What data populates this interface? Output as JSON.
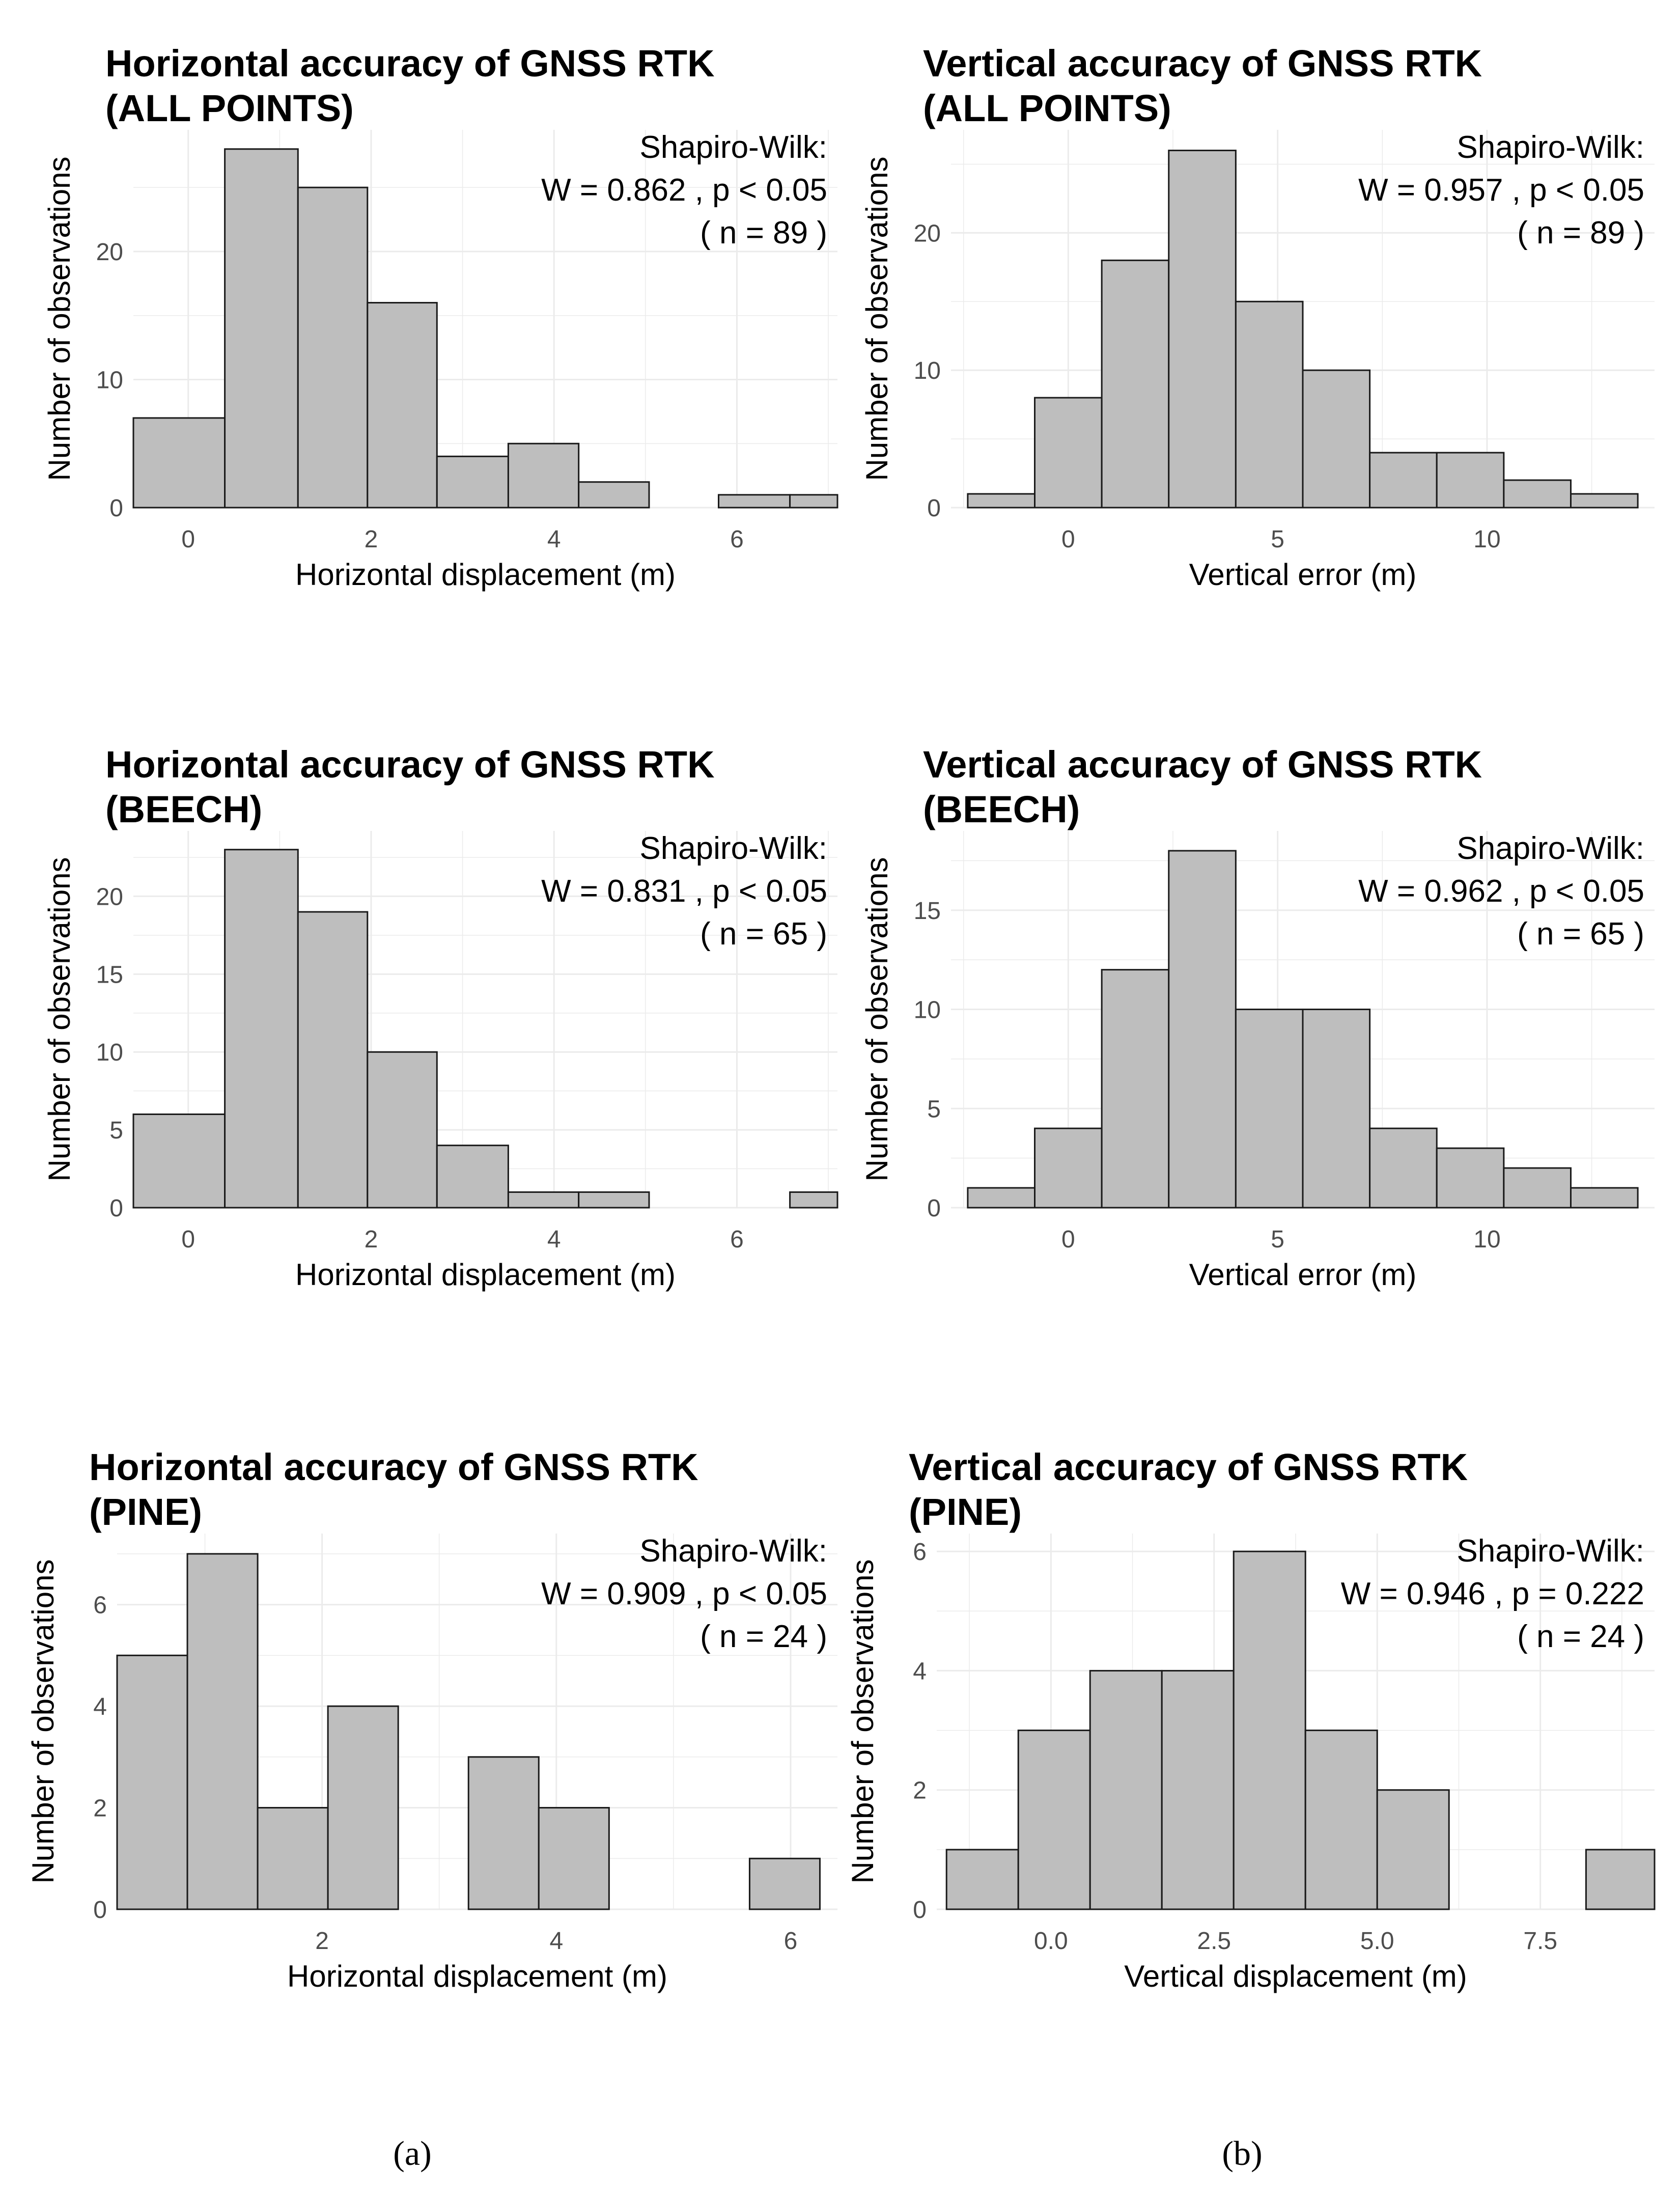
{
  "chart_data": [
    {
      "id": "h-all",
      "type": "histogram",
      "title_lines": [
        "Horizontal accuracy of GNSS RTK",
        " (ALL POINTS)"
      ],
      "stats_lines": [
        "Shapiro-Wilk:",
        "W = 0.862 , p < 0.05",
        "( n = 89 )"
      ],
      "xlabel": "Horizontal displacement (m)",
      "ylabel": "Number of observations",
      "xlim": [
        -0.6,
        7.1
      ],
      "ylim": [
        0,
        29.5
      ],
      "xticks": [
        0,
        2,
        4,
        6
      ],
      "xtick_labels": [
        "0",
        "2",
        "4",
        "6"
      ],
      "yticks": [
        0,
        10,
        20
      ],
      "ytick_labels": [
        "0",
        "10",
        "20"
      ],
      "bins": [
        {
          "x0": -0.6,
          "x1": 0.4,
          "count": 7
        },
        {
          "x0": 0.4,
          "x1": 1.2,
          "count": 28
        },
        {
          "x0": 1.2,
          "x1": 1.96,
          "count": 25
        },
        {
          "x0": 1.96,
          "x1": 2.72,
          "count": 16
        },
        {
          "x0": 2.72,
          "x1": 3.5,
          "count": 4
        },
        {
          "x0": 3.5,
          "x1": 4.27,
          "count": 5
        },
        {
          "x0": 4.27,
          "x1": 5.04,
          "count": 2
        },
        {
          "x0": 5.04,
          "x1": 5.8,
          "count": 0
        },
        {
          "x0": 5.8,
          "x1": 6.58,
          "count": 1
        },
        {
          "x0": 6.58,
          "x1": 7.35,
          "count": 1
        }
      ]
    },
    {
      "id": "v-all",
      "type": "histogram",
      "title_lines": [
        "Vertical accuracy of GNSS RTK",
        " (ALL POINTS)"
      ],
      "stats_lines": [
        "Shapiro-Wilk:",
        "W = 0.957 , p < 0.05",
        "( n = 89 )"
      ],
      "xlabel": "Vertical error (m)",
      "ylabel": "Number of observations",
      "xlim": [
        -2.8,
        14.0
      ],
      "ylim": [
        0,
        27.5
      ],
      "xticks": [
        0,
        5,
        10
      ],
      "xtick_labels": [
        "0",
        "5",
        "10"
      ],
      "yticks": [
        0,
        10,
        20
      ],
      "ytick_labels": [
        "0",
        "10",
        "20"
      ],
      "bins": [
        {
          "x0": -2.4,
          "x1": -0.8,
          "count": 1
        },
        {
          "x0": -0.8,
          "x1": 0.8,
          "count": 8
        },
        {
          "x0": 0.8,
          "x1": 2.4,
          "count": 18
        },
        {
          "x0": 2.4,
          "x1": 4.0,
          "count": 26
        },
        {
          "x0": 4.0,
          "x1": 5.6,
          "count": 15
        },
        {
          "x0": 5.6,
          "x1": 7.2,
          "count": 10
        },
        {
          "x0": 7.2,
          "x1": 8.8,
          "count": 4
        },
        {
          "x0": 8.8,
          "x1": 10.4,
          "count": 4
        },
        {
          "x0": 10.4,
          "x1": 12.0,
          "count": 2
        },
        {
          "x0": 12.0,
          "x1": 13.6,
          "count": 1
        }
      ]
    },
    {
      "id": "h-beech",
      "type": "histogram",
      "title_lines": [
        "Horizontal accuracy of GNSS RTK",
        " (BEECH)"
      ],
      "stats_lines": [
        "Shapiro-Wilk:",
        "W = 0.831 , p < 0.05",
        "( n = 65 )"
      ],
      "xlabel": "Horizontal displacement (m)",
      "ylabel": "Number of observations",
      "xlim": [
        -0.6,
        7.1
      ],
      "ylim": [
        0,
        24.2
      ],
      "xticks": [
        0,
        2,
        4,
        6
      ],
      "xtick_labels": [
        "0",
        "2",
        "4",
        "6"
      ],
      "yticks": [
        0,
        5,
        10,
        15,
        20
      ],
      "ytick_labels": [
        "0",
        "5",
        "10",
        "15",
        "20"
      ],
      "bins": [
        {
          "x0": -0.6,
          "x1": 0.4,
          "count": 6
        },
        {
          "x0": 0.4,
          "x1": 1.2,
          "count": 23
        },
        {
          "x0": 1.2,
          "x1": 1.96,
          "count": 19
        },
        {
          "x0": 1.96,
          "x1": 2.72,
          "count": 10
        },
        {
          "x0": 2.72,
          "x1": 3.5,
          "count": 4
        },
        {
          "x0": 3.5,
          "x1": 4.27,
          "count": 1
        },
        {
          "x0": 4.27,
          "x1": 5.04,
          "count": 1
        },
        {
          "x0": 5.04,
          "x1": 5.8,
          "count": 0
        },
        {
          "x0": 5.8,
          "x1": 6.58,
          "count": 0
        },
        {
          "x0": 6.58,
          "x1": 7.35,
          "count": 1
        }
      ]
    },
    {
      "id": "v-beech",
      "type": "histogram",
      "title_lines": [
        "Vertical accuracy of GNSS RTK",
        " (BEECH)"
      ],
      "stats_lines": [
        "Shapiro-Wilk:",
        "W = 0.962 , p < 0.05",
        "( n = 65 )"
      ],
      "xlabel": "Vertical error (m)",
      "ylabel": "Number of observations",
      "xlim": [
        -2.8,
        14.0
      ],
      "ylim": [
        0,
        19.0
      ],
      "xticks": [
        0,
        5,
        10
      ],
      "xtick_labels": [
        "0",
        "5",
        "10"
      ],
      "yticks": [
        0,
        5,
        10,
        15
      ],
      "ytick_labels": [
        "0",
        "5",
        "10",
        "15"
      ],
      "bins": [
        {
          "x0": -2.4,
          "x1": -0.8,
          "count": 1
        },
        {
          "x0": -0.8,
          "x1": 0.8,
          "count": 4
        },
        {
          "x0": 0.8,
          "x1": 2.4,
          "count": 12
        },
        {
          "x0": 2.4,
          "x1": 4.0,
          "count": 18
        },
        {
          "x0": 4.0,
          "x1": 5.6,
          "count": 10
        },
        {
          "x0": 5.6,
          "x1": 7.2,
          "count": 10
        },
        {
          "x0": 7.2,
          "x1": 8.8,
          "count": 4
        },
        {
          "x0": 8.8,
          "x1": 10.4,
          "count": 3
        },
        {
          "x0": 10.4,
          "x1": 12.0,
          "count": 2
        },
        {
          "x0": 12.0,
          "x1": 13.6,
          "count": 1
        }
      ]
    },
    {
      "id": "h-pine",
      "type": "histogram",
      "title_lines": [
        "Horizontal accuracy of GNSS RTK",
        " (PINE)"
      ],
      "stats_lines": [
        "Shapiro-Wilk:",
        "W = 0.909 , p < 0.05",
        "( n = 24 )"
      ],
      "xlabel": "Horizontal displacement (m)",
      "ylabel": "Number of observations",
      "xlim": [
        0.25,
        6.4
      ],
      "ylim": [
        0,
        7.4
      ],
      "xticks": [
        2,
        4,
        6
      ],
      "xtick_labels": [
        "2",
        "4",
        "6"
      ],
      "yticks": [
        0,
        2,
        4,
        6
      ],
      "ytick_labels": [
        "0",
        "2",
        "4",
        "6"
      ],
      "bins": [
        {
          "x0": 0.25,
          "x1": 0.85,
          "count": 5
        },
        {
          "x0": 0.85,
          "x1": 1.45,
          "count": 7
        },
        {
          "x0": 1.45,
          "x1": 2.05,
          "count": 2
        },
        {
          "x0": 2.05,
          "x1": 2.65,
          "count": 4
        },
        {
          "x0": 2.65,
          "x1": 3.25,
          "count": 0
        },
        {
          "x0": 3.25,
          "x1": 3.85,
          "count": 3
        },
        {
          "x0": 3.85,
          "x1": 4.45,
          "count": 2
        },
        {
          "x0": 4.45,
          "x1": 5.05,
          "count": 0
        },
        {
          "x0": 5.05,
          "x1": 5.65,
          "count": 0
        },
        {
          "x0": 5.65,
          "x1": 6.25,
          "count": 1
        }
      ]
    },
    {
      "id": "v-pine",
      "type": "histogram",
      "title_lines": [
        "Vertical accuracy of GNSS RTK",
        " (PINE)"
      ],
      "stats_lines": [
        "Shapiro-Wilk:",
        "W = 0.946 , p = 0.222",
        "( n = 24 )"
      ],
      "xlabel": "Vertical displacement (m)",
      "ylabel": "Number of observations",
      "xlim": [
        -1.75,
        9.25
      ],
      "ylim": [
        0,
        6.3
      ],
      "xticks": [
        0,
        2.5,
        5,
        7.5
      ],
      "xtick_labels": [
        "0.0",
        "2.5",
        "5.0",
        "7.5"
      ],
      "yticks": [
        0,
        2,
        4,
        6
      ],
      "ytick_labels": [
        "0",
        "2",
        "4",
        "6"
      ],
      "bins": [
        {
          "x0": -1.6,
          "x1": -0.5,
          "count": 1
        },
        {
          "x0": -0.5,
          "x1": 0.6,
          "count": 3
        },
        {
          "x0": 0.6,
          "x1": 1.7,
          "count": 4
        },
        {
          "x0": 1.7,
          "x1": 2.8,
          "count": 4
        },
        {
          "x0": 2.8,
          "x1": 3.9,
          "count": 6
        },
        {
          "x0": 3.9,
          "x1": 5.0,
          "count": 3
        },
        {
          "x0": 5.0,
          "x1": 6.1,
          "count": 2
        },
        {
          "x0": 6.1,
          "x1": 7.2,
          "count": 0
        },
        {
          "x0": 7.2,
          "x1": 8.2,
          "count": 0
        },
        {
          "x0": 8.2,
          "x1": 9.3,
          "count": 1
        }
      ]
    }
  ],
  "panel_labels": {
    "left": "(a)",
    "right": "(b)"
  },
  "colors": {
    "bar_fill": "#bebebe",
    "bar_stroke": "#1a1a1a",
    "grid": "#ebebeb",
    "text": "#000000",
    "tick_text": "#4d4d4d"
  }
}
